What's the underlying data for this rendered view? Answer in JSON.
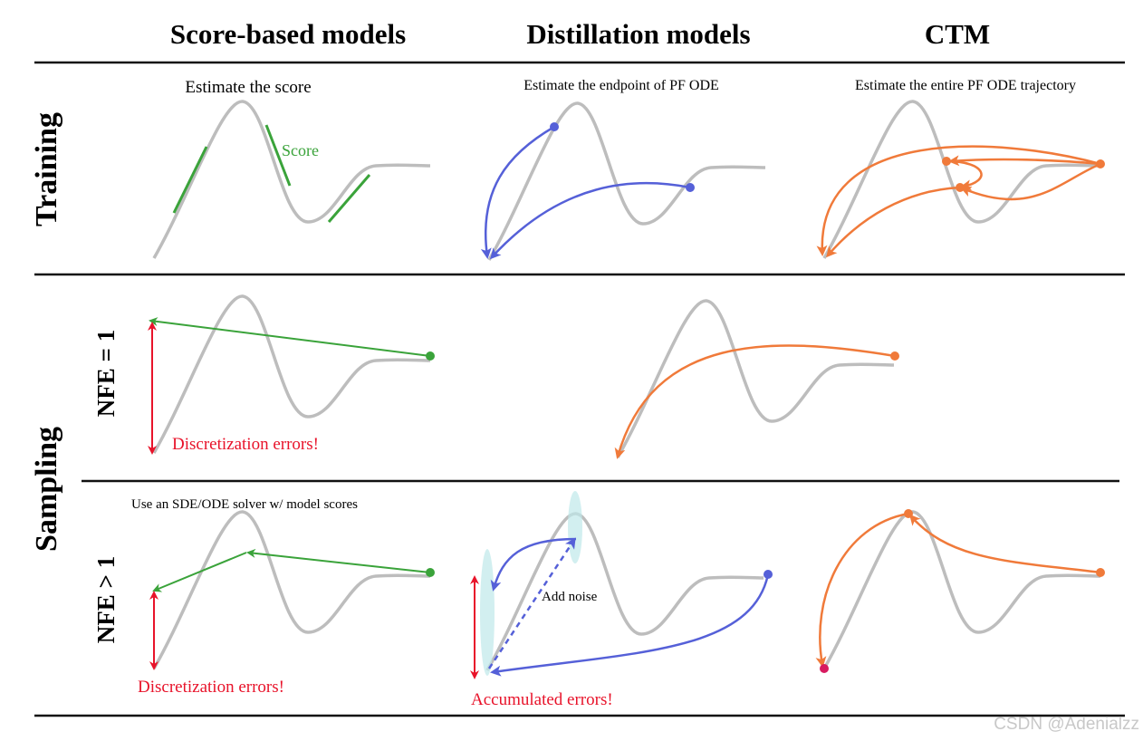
{
  "header": {
    "columns": [
      "Score-based models",
      "Distillation models",
      "CTM"
    ]
  },
  "rows": [
    "Training",
    "Sampling"
  ],
  "sub_rows": [
    "NFE = 1",
    "NFE > 1"
  ],
  "training": {
    "score_caption": "Estimate the score",
    "score_label": "Score",
    "distill_caption": "Estimate the endpoint of PF ODE",
    "ctm_caption": "Estimate the entire PF ODE trajectory"
  },
  "nfe1": {
    "score_error": "Discretization errors!"
  },
  "nfe_many": {
    "score_caption": "Use an SDE/ODE solver w/ model scores",
    "score_error": "Discretization errors!",
    "distill_note": "Add noise",
    "distill_error": "Accumulated errors!"
  },
  "watermark": "CSDN @Adenialzz"
}
